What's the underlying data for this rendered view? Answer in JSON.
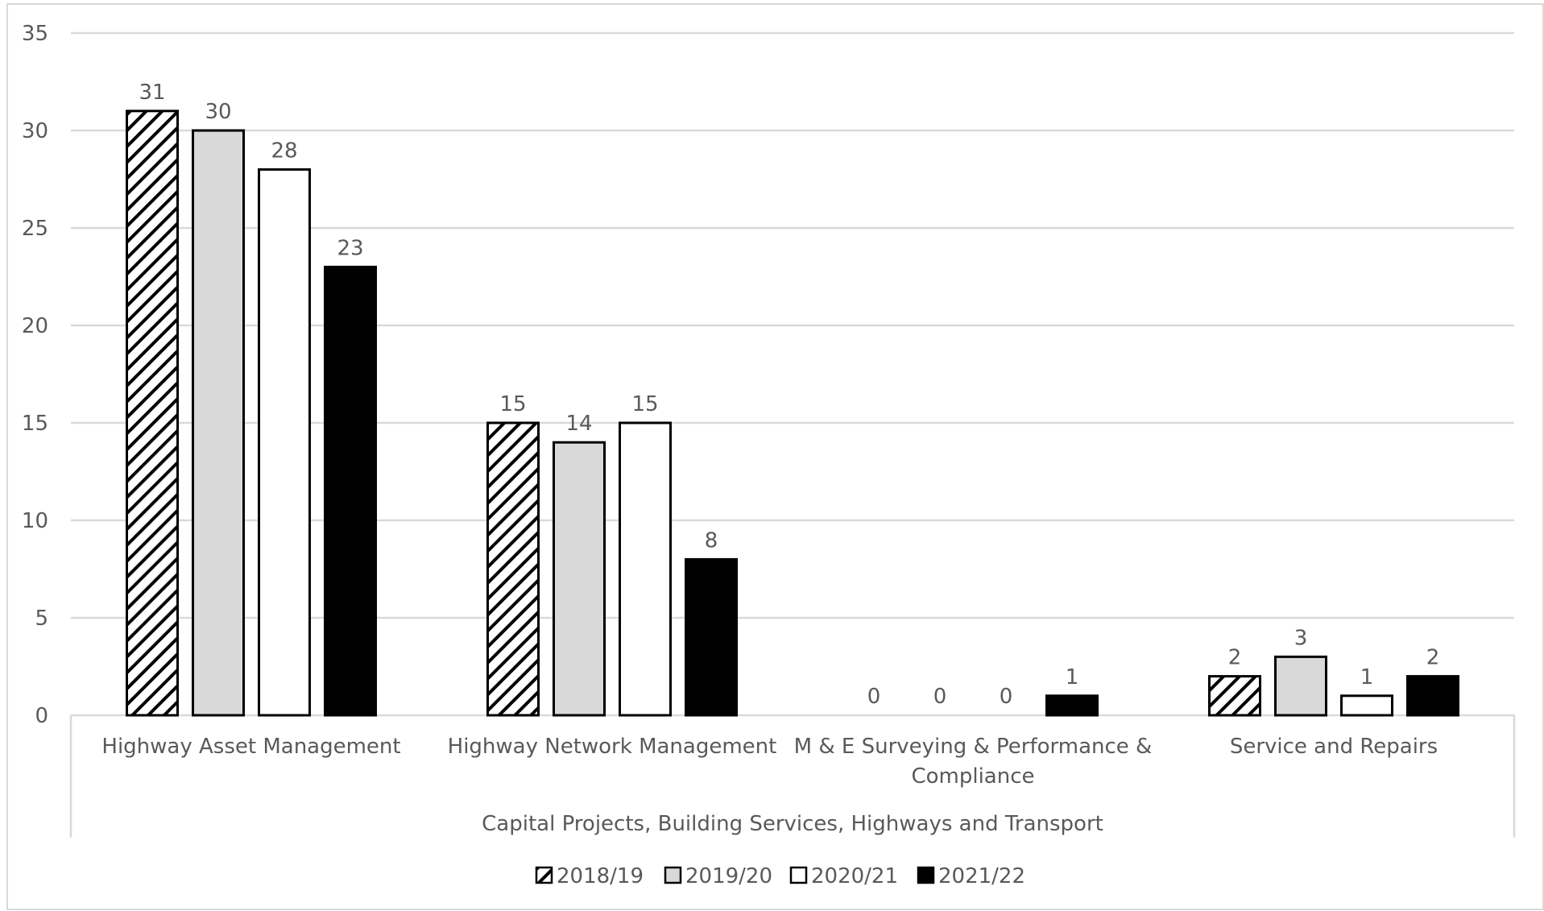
{
  "chart_data": {
    "type": "bar",
    "title": "",
    "xlabel": "",
    "ylabel": "",
    "ylim": [
      0,
      35
    ],
    "y_ticks": [
      0,
      5,
      10,
      15,
      20,
      25,
      30,
      35
    ],
    "grid": true,
    "legend_position": "bottom",
    "group_label": "Capital Projects, Building Services, Highways and Transport",
    "categories": [
      [
        "Highway Asset Management"
      ],
      [
        "Highway Network Management"
      ],
      [
        "M & E Surveying & Performance &",
        "Compliance"
      ],
      [
        "Service and Repairs"
      ]
    ],
    "series": [
      {
        "name": "2018/19",
        "pattern": "hatched",
        "values": [
          31,
          15,
          0,
          2
        ]
      },
      {
        "name": "2019/20",
        "pattern": "light-gray",
        "values": [
          30,
          14,
          0,
          3
        ]
      },
      {
        "name": "2020/21",
        "pattern": "white",
        "values": [
          28,
          15,
          0,
          1
        ]
      },
      {
        "name": "2021/22",
        "pattern": "black",
        "values": [
          23,
          8,
          1,
          2
        ]
      }
    ],
    "colors": {
      "gridline": "#d9d9d9",
      "axis_text": "#595959",
      "bar_outline": "#000000",
      "light_gray": "#d9d9d9",
      "black": "#000000",
      "white": "#ffffff"
    }
  }
}
